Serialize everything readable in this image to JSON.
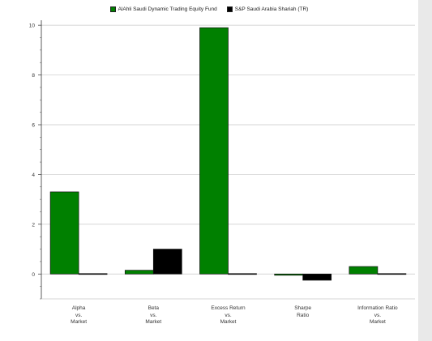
{
  "chart_data": {
    "type": "bar",
    "categories": [
      "Alpha\nvs.\nMarket",
      "Beta\nvs.\nMarket",
      "Excess Return\nvs.\nMarket",
      "Sharpe\nRatio",
      "Information Ratio\nvs.\nMarket"
    ],
    "series": [
      {
        "name": "AlAhli Saudi Dynamic Trading Equity Fund",
        "color": "#008000",
        "values": [
          3.3,
          0.15,
          9.9,
          -0.05,
          0.3
        ]
      },
      {
        "name": "S&P Saudi Arabia Shariah (TR)",
        "color": "#000000",
        "values": [
          0,
          1.0,
          0,
          -0.25,
          0
        ]
      }
    ],
    "yticks": [
      0,
      2,
      4,
      6,
      8,
      10
    ],
    "ylim": [
      -1,
      10.2
    ],
    "grid": true,
    "legend": "top-center"
  }
}
